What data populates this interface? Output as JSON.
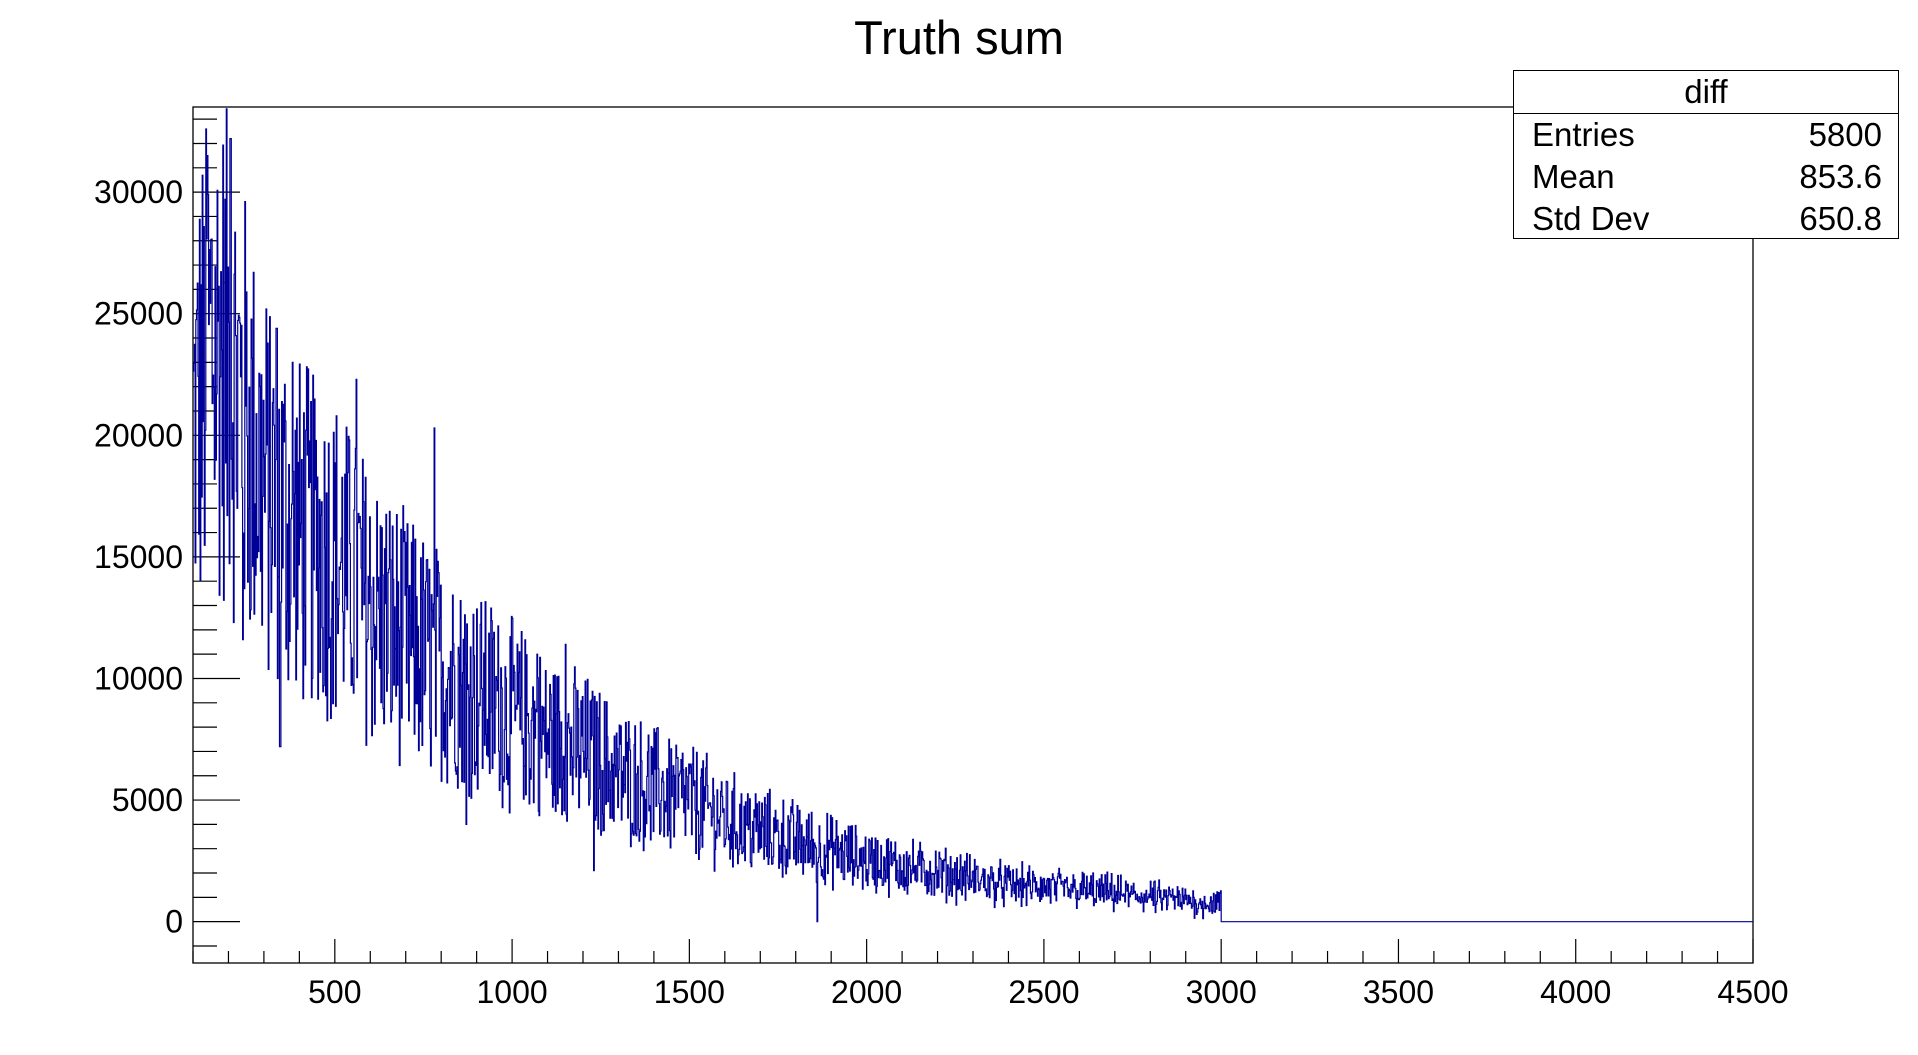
{
  "chart_data": {
    "type": "histogram",
    "title": "Truth sum",
    "xlim": [
      100,
      4500
    ],
    "ylim": [
      -1700,
      33500
    ],
    "x_ticks": [
      "500",
      "1000",
      "1500",
      "2000",
      "2500",
      "3000",
      "3500",
      "4000",
      "4500"
    ],
    "y_ticks": [
      "0",
      "5000",
      "10000",
      "15000",
      "20000",
      "25000",
      "30000"
    ],
    "series": [
      {
        "color": "#000099",
        "data_range": [
          100,
          3000
        ],
        "empty_range": [
          3000,
          4500
        ],
        "envelope": [
          {
            "x": 100,
            "y": 20000
          },
          {
            "x": 150,
            "y": 24000
          },
          {
            "x": 200,
            "y": 23000
          },
          {
            "x": 300,
            "y": 18000
          },
          {
            "x": 400,
            "y": 16000
          },
          {
            "x": 500,
            "y": 15000
          },
          {
            "x": 600,
            "y": 13000
          },
          {
            "x": 700,
            "y": 11500
          },
          {
            "x": 800,
            "y": 10500
          },
          {
            "x": 900,
            "y": 9500
          },
          {
            "x": 1000,
            "y": 8500
          },
          {
            "x": 1100,
            "y": 7500
          },
          {
            "x": 1200,
            "y": 7000
          },
          {
            "x": 1300,
            "y": 6000
          },
          {
            "x": 1400,
            "y": 5500
          },
          {
            "x": 1500,
            "y": 5000
          },
          {
            "x": 1600,
            "y": 4200
          },
          {
            "x": 1700,
            "y": 3700
          },
          {
            "x": 1800,
            "y": 3300
          },
          {
            "x": 1900,
            "y": 2900
          },
          {
            "x": 2000,
            "y": 2500
          },
          {
            "x": 2200,
            "y": 2000
          },
          {
            "x": 2400,
            "y": 1500
          },
          {
            "x": 2600,
            "y": 1300
          },
          {
            "x": 2800,
            "y": 1000
          },
          {
            "x": 3000,
            "y": 700
          }
        ],
        "peaks": [
          {
            "x": 140,
            "y": 31500
          },
          {
            "x": 205,
            "y": 32200
          },
          {
            "x": 270,
            "y": 26700
          },
          {
            "x": 335,
            "y": 24400
          },
          {
            "x": 380,
            "y": 23000
          },
          {
            "x": 560,
            "y": 22300
          },
          {
            "x": 780,
            "y": 20300
          },
          {
            "x": 1070,
            "y": 11000
          },
          {
            "x": 1150,
            "y": 11400
          }
        ],
        "troughs": [
          {
            "x": 240,
            "y": 11600
          },
          {
            "x": 345,
            "y": 7200
          },
          {
            "x": 870,
            "y": 4000
          },
          {
            "x": 1230,
            "y": 2100
          },
          {
            "x": 1860,
            "y": 0
          }
        ]
      }
    ]
  },
  "stats_box": {
    "title": "diff",
    "rows": [
      {
        "label": "Entries",
        "value": "5800"
      },
      {
        "label": "Mean",
        "value": "853.6"
      },
      {
        "label": "Std Dev",
        "value": "650.8"
      }
    ]
  }
}
